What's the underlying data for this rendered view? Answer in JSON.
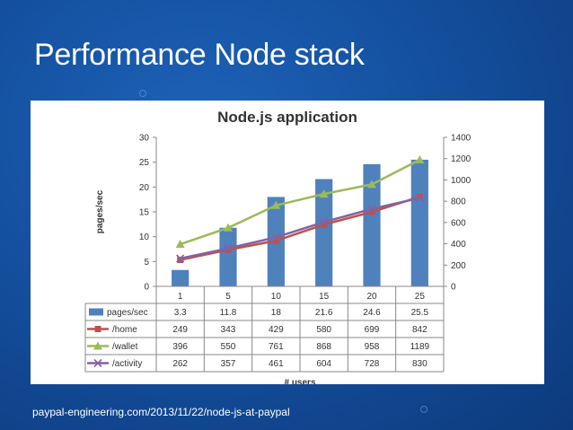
{
  "slide": {
    "title": "Performance Node stack",
    "source": "paypal-engineering.com/2013/11/22/node-js-at-paypal"
  },
  "colors": {
    "bars": "#4f81bd",
    "home": "#c0504d",
    "wallet": "#9bbb59",
    "activity": "#8064a2"
  },
  "chart_data": {
    "type": "bar",
    "title": "Node.js application",
    "xlabel": "# users",
    "ylabel": "pages/sec",
    "categories": [
      "1",
      "5",
      "10",
      "15",
      "20",
      "25"
    ],
    "ylim": [
      0,
      30
    ],
    "y_ticks": [
      "0",
      "5",
      "10",
      "15",
      "20",
      "25",
      "30"
    ],
    "y2lim": [
      0,
      1400
    ],
    "y2_ticks": [
      "0",
      "200",
      "400",
      "600",
      "800",
      "1000",
      "1200",
      "1400"
    ],
    "grid": false,
    "series": [
      {
        "name": "pages/sec",
        "type": "bar",
        "axis": "left",
        "values": [
          3.3,
          11.8,
          18,
          21.6,
          24.6,
          25.5
        ],
        "labels": [
          "3.3",
          "11.8",
          "18",
          "21.6",
          "24.6",
          "25.5"
        ]
      },
      {
        "name": "/home",
        "type": "line",
        "axis": "right",
        "marker": "square",
        "values": [
          249,
          343,
          429,
          580,
          699,
          842
        ],
        "labels": [
          "249",
          "343",
          "429",
          "580",
          "699",
          "842"
        ]
      },
      {
        "name": "/wallet",
        "type": "line",
        "axis": "right",
        "marker": "triangle",
        "values": [
          396,
          550,
          761,
          868,
          958,
          1189
        ],
        "labels": [
          "396",
          "550",
          "761",
          "868",
          "958",
          "1189"
        ]
      },
      {
        "name": "/activity",
        "type": "line",
        "axis": "right",
        "marker": "x",
        "values": [
          262,
          357,
          461,
          604,
          728,
          830
        ],
        "labels": [
          "262",
          "357",
          "461",
          "604",
          "728",
          "830"
        ]
      }
    ]
  }
}
